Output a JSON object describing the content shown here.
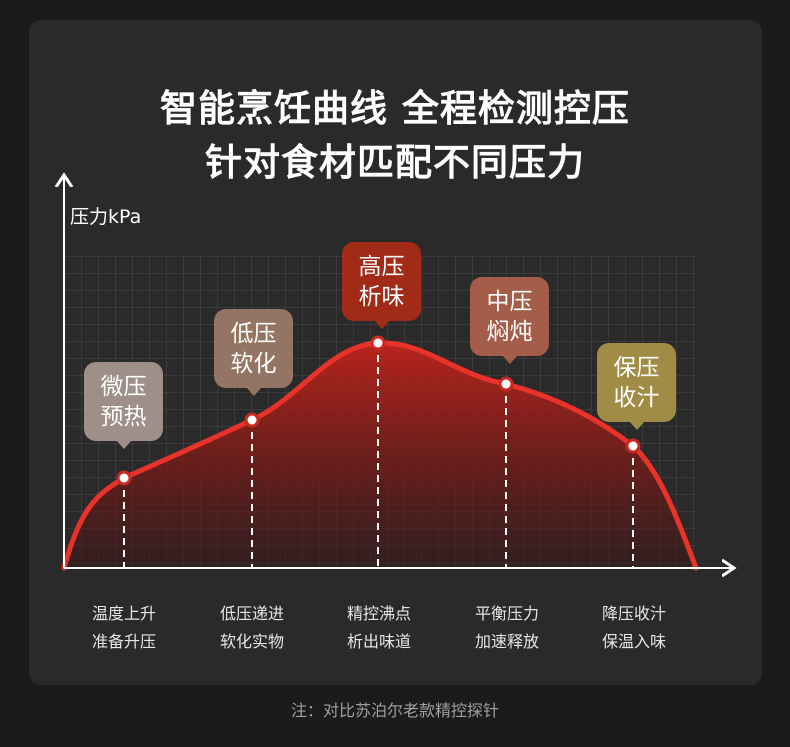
{
  "title_line1": "智能烹饪曲线 全程检测控压",
  "title_line2": "针对食材匹配不同压力",
  "y_axis_label": "压力kPa",
  "stages": [
    {
      "bubble_line1": "微压",
      "bubble_line2": "预热",
      "bubble_color": "#9e8f89",
      "desc_line1": "温度上升",
      "desc_line2": "准备升压"
    },
    {
      "bubble_line1": "低压",
      "bubble_line2": "软化",
      "bubble_color": "#947462",
      "desc_line1": "低压递进",
      "desc_line2": "软化实物"
    },
    {
      "bubble_line1": "高压",
      "bubble_line2": "析味",
      "bubble_color": "#a22b17",
      "desc_line1": "精控沸点",
      "desc_line2": "析出味道"
    },
    {
      "bubble_line1": "中压",
      "bubble_line2": "焖炖",
      "bubble_color": "#a35d48",
      "desc_line1": "平衡压力",
      "desc_line2": "加速释放"
    },
    {
      "bubble_line1": "保压",
      "bubble_line2": "收汁",
      "bubble_color": "#a18c45",
      "desc_line1": "降压收汁",
      "desc_line2": "保温入味"
    }
  ],
  "footnote": "注：对比苏泊尔老款精控探针",
  "curve_color": "#e8322a"
}
